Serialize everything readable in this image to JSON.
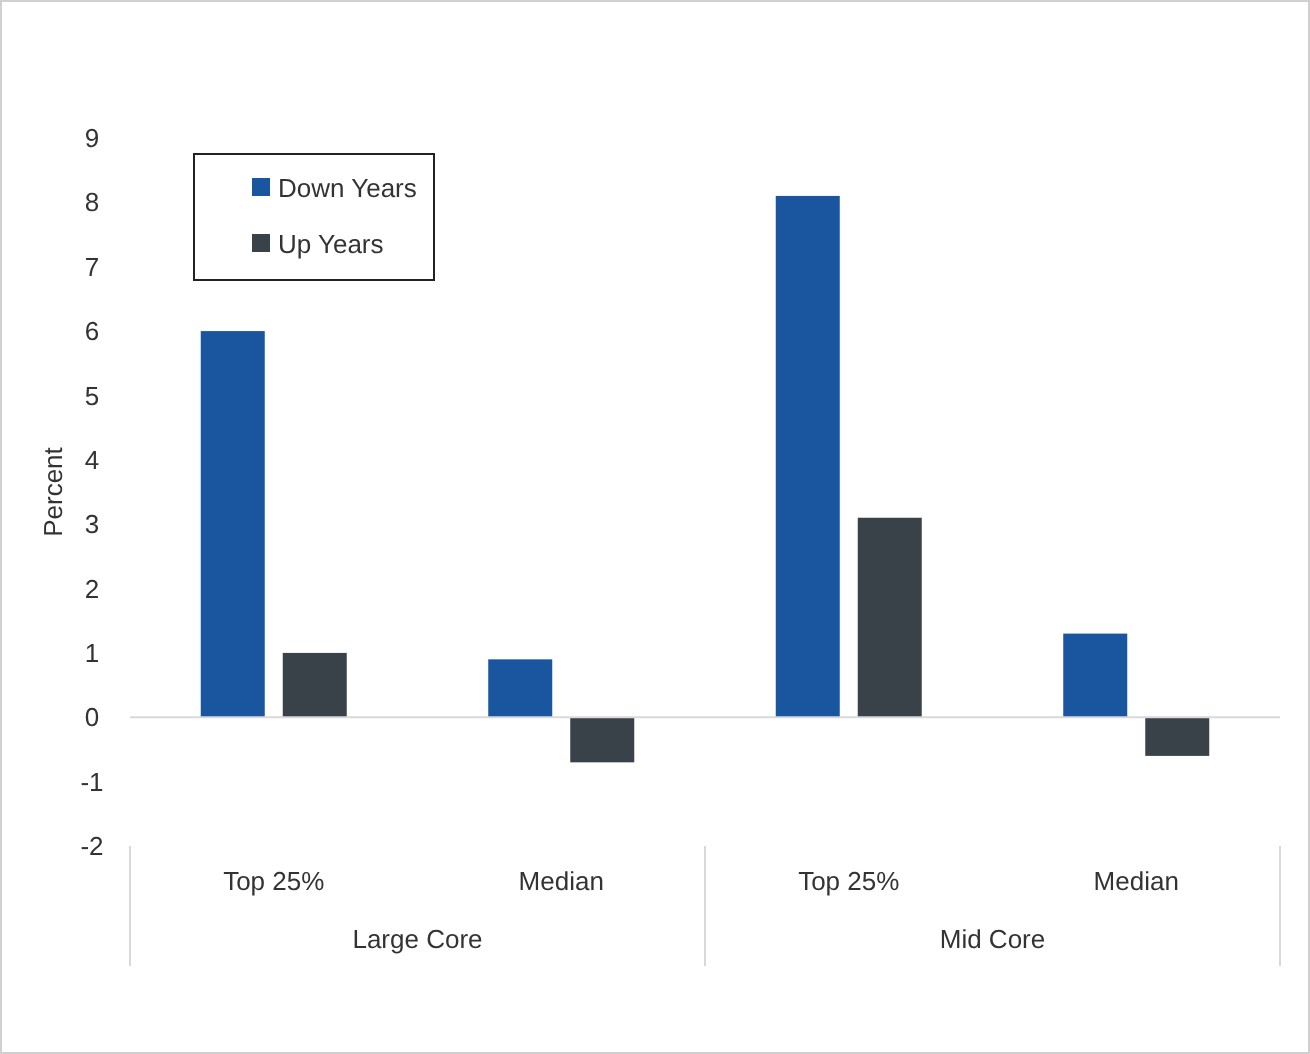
{
  "chart_data": {
    "type": "bar",
    "ylabel": "Percent",
    "categories": [
      "Top 25%",
      "Median",
      "Top 25%",
      "Median"
    ],
    "series": [
      {
        "name": "Down Years",
        "color": "#1a56a0",
        "values": [
          6.0,
          0.9,
          8.1,
          1.3
        ]
      },
      {
        "name": "Up Years",
        "color": "#3a4249",
        "values": [
          1.0,
          -0.7,
          3.1,
          -0.6
        ]
      }
    ],
    "annotations": [
      "Large Core",
      "Mid Core"
    ],
    "ylim": [
      -2,
      9
    ],
    "yticks": [
      -2,
      -1,
      0,
      1,
      2,
      3,
      4,
      5,
      6,
      7,
      8,
      9
    ],
    "legend": "top left"
  }
}
